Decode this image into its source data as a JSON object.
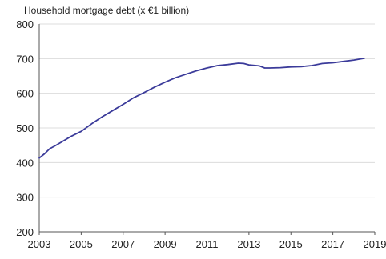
{
  "chart_data": {
    "type": "line",
    "title": "Household mortgage debt (x €1 billion)",
    "xlabel": "",
    "ylabel": "",
    "xlim": [
      2003,
      2019
    ],
    "ylim": [
      200,
      800
    ],
    "x_ticks": [
      2003,
      2005,
      2007,
      2009,
      2011,
      2013,
      2015,
      2017,
      2019
    ],
    "y_ticks": [
      200,
      300,
      400,
      500,
      600,
      700,
      800
    ],
    "grid": "horizontal",
    "legend": "none",
    "colors": {
      "line": "#3b3b9a",
      "grid": "#dcdcdc",
      "axis": "#555555"
    },
    "series": [
      {
        "x": [
          2003.0,
          2003.25,
          2003.5,
          2003.75,
          2004.0,
          2004.5,
          2005.0,
          2005.5,
          2006.0,
          2006.5,
          2007.0,
          2007.5,
          2008.0,
          2008.5,
          2009.0,
          2009.5,
          2010.0,
          2010.5,
          2011.0,
          2011.5,
          2012.0,
          2012.5,
          2012.75,
          2013.0,
          2013.5,
          2013.75,
          2014.0,
          2014.5,
          2015.0,
          2015.5,
          2016.0,
          2016.5,
          2017.0,
          2017.5,
          2018.0,
          2018.5
        ],
        "y": [
          413,
          425,
          440,
          448,
          457,
          475,
          490,
          512,
          532,
          550,
          568,
          587,
          602,
          618,
          632,
          645,
          655,
          665,
          673,
          680,
          683,
          687,
          686,
          682,
          679,
          673,
          673,
          674,
          676,
          677,
          680,
          686,
          688,
          692,
          696,
          701
        ]
      }
    ]
  }
}
